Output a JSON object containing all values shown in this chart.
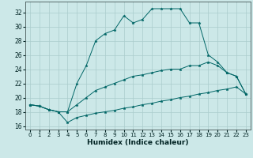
{
  "xlabel": "Humidex (Indice chaleur)",
  "bg_color": "#cce8e8",
  "grid_color": "#aacccc",
  "line_color": "#006666",
  "xlim": [
    -0.5,
    23.5
  ],
  "ylim": [
    15.5,
    33.5
  ],
  "yticks": [
    16,
    18,
    20,
    22,
    24,
    26,
    28,
    30,
    32
  ],
  "xticks": [
    0,
    1,
    2,
    3,
    4,
    5,
    6,
    7,
    8,
    9,
    10,
    11,
    12,
    13,
    14,
    15,
    16,
    17,
    18,
    19,
    20,
    21,
    22,
    23
  ],
  "line_bottom_x": [
    0,
    1,
    2,
    3,
    4,
    5,
    6,
    7,
    8,
    9,
    10,
    11,
    12,
    13,
    14,
    15,
    16,
    17,
    18,
    19,
    20,
    21,
    22,
    23
  ],
  "line_bottom_y": [
    19.0,
    18.8,
    18.3,
    18.0,
    16.5,
    17.2,
    17.5,
    17.8,
    18.0,
    18.2,
    18.5,
    18.7,
    19.0,
    19.2,
    19.5,
    19.7,
    20.0,
    20.2,
    20.5,
    20.7,
    21.0,
    21.2,
    21.5,
    20.5
  ],
  "line_middle_x": [
    0,
    1,
    2,
    3,
    4,
    5,
    6,
    7,
    8,
    9,
    10,
    11,
    12,
    13,
    14,
    15,
    16,
    17,
    18,
    19,
    20,
    21,
    22,
    23
  ],
  "line_middle_y": [
    19.0,
    18.8,
    18.3,
    18.0,
    18.0,
    19.0,
    20.0,
    21.0,
    21.5,
    22.0,
    22.5,
    23.0,
    23.2,
    23.5,
    23.8,
    24.0,
    24.0,
    24.5,
    24.5,
    25.0,
    24.5,
    23.5,
    23.0,
    20.5
  ],
  "line_top_x": [
    0,
    1,
    2,
    3,
    4,
    5,
    6,
    7,
    8,
    9,
    10,
    11,
    12,
    13,
    14,
    15,
    16,
    17,
    18,
    19,
    20,
    21,
    22,
    23
  ],
  "line_top_y": [
    19.0,
    18.8,
    18.3,
    18.0,
    18.0,
    22.0,
    24.5,
    28.0,
    29.0,
    29.5,
    31.5,
    30.5,
    31.0,
    32.5,
    32.5,
    32.5,
    32.5,
    30.5,
    30.5,
    26.0,
    25.0,
    23.5,
    23.0,
    20.5
  ]
}
